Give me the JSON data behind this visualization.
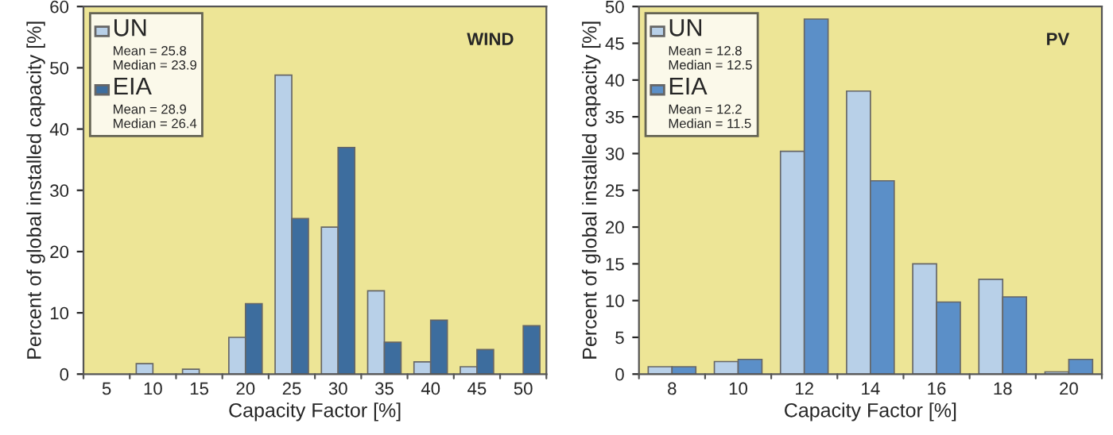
{
  "chart_data": [
    {
      "type": "bar",
      "title": "WIND",
      "xlabel": "Capacity Factor [%]",
      "ylabel": "Percent of global installed capacity [%]",
      "categories": [
        "5",
        "10",
        "15",
        "20",
        "25",
        "30",
        "35",
        "40",
        "45",
        "50"
      ],
      "series": [
        {
          "name": "UN",
          "color": "#b8d0e8",
          "values": [
            null,
            1.7,
            0.8,
            6,
            48.8,
            24,
            13.6,
            2,
            1.2,
            null
          ]
        },
        {
          "name": "EIA",
          "color": "#3d6d9e",
          "values": [
            null,
            null,
            null,
            11.5,
            25.4,
            37,
            5.2,
            8.8,
            4,
            7.9
          ]
        }
      ],
      "annotations": [
        "Mean = 25.8\nMedian = 23.9",
        "Mean = 28.9\nMedian = 26.4"
      ],
      "ylim": [
        0,
        60
      ],
      "yticks": [
        0,
        10,
        20,
        30,
        40,
        50,
        60
      ],
      "grid": false,
      "legend": "top left"
    },
    {
      "type": "bar",
      "title": "PV",
      "xlabel": "Capacity Factor [%]",
      "ylabel": "Percent of global installed capacity [%]",
      "categories": [
        "8",
        "10",
        "12",
        "14",
        "16",
        "18",
        "20"
      ],
      "series": [
        {
          "name": "UN",
          "color": "#b8d0e8",
          "values": [
            1,
            1.7,
            30.3,
            38.5,
            15,
            12.9,
            0.3
          ]
        },
        {
          "name": "EIA",
          "color": "#5b8fc8",
          "values": [
            1,
            2,
            48.3,
            26.3,
            9.8,
            10.5,
            2
          ]
        }
      ],
      "annotations": [
        "Mean = 12.8\nMedian = 12.5",
        "Mean = 12.2\nMedian = 11.5"
      ],
      "ylim": [
        0,
        50
      ],
      "yticks": [
        0,
        5,
        10,
        15,
        20,
        25,
        30,
        35,
        40,
        45,
        50
      ],
      "grid": false,
      "legend": "top left"
    }
  ]
}
